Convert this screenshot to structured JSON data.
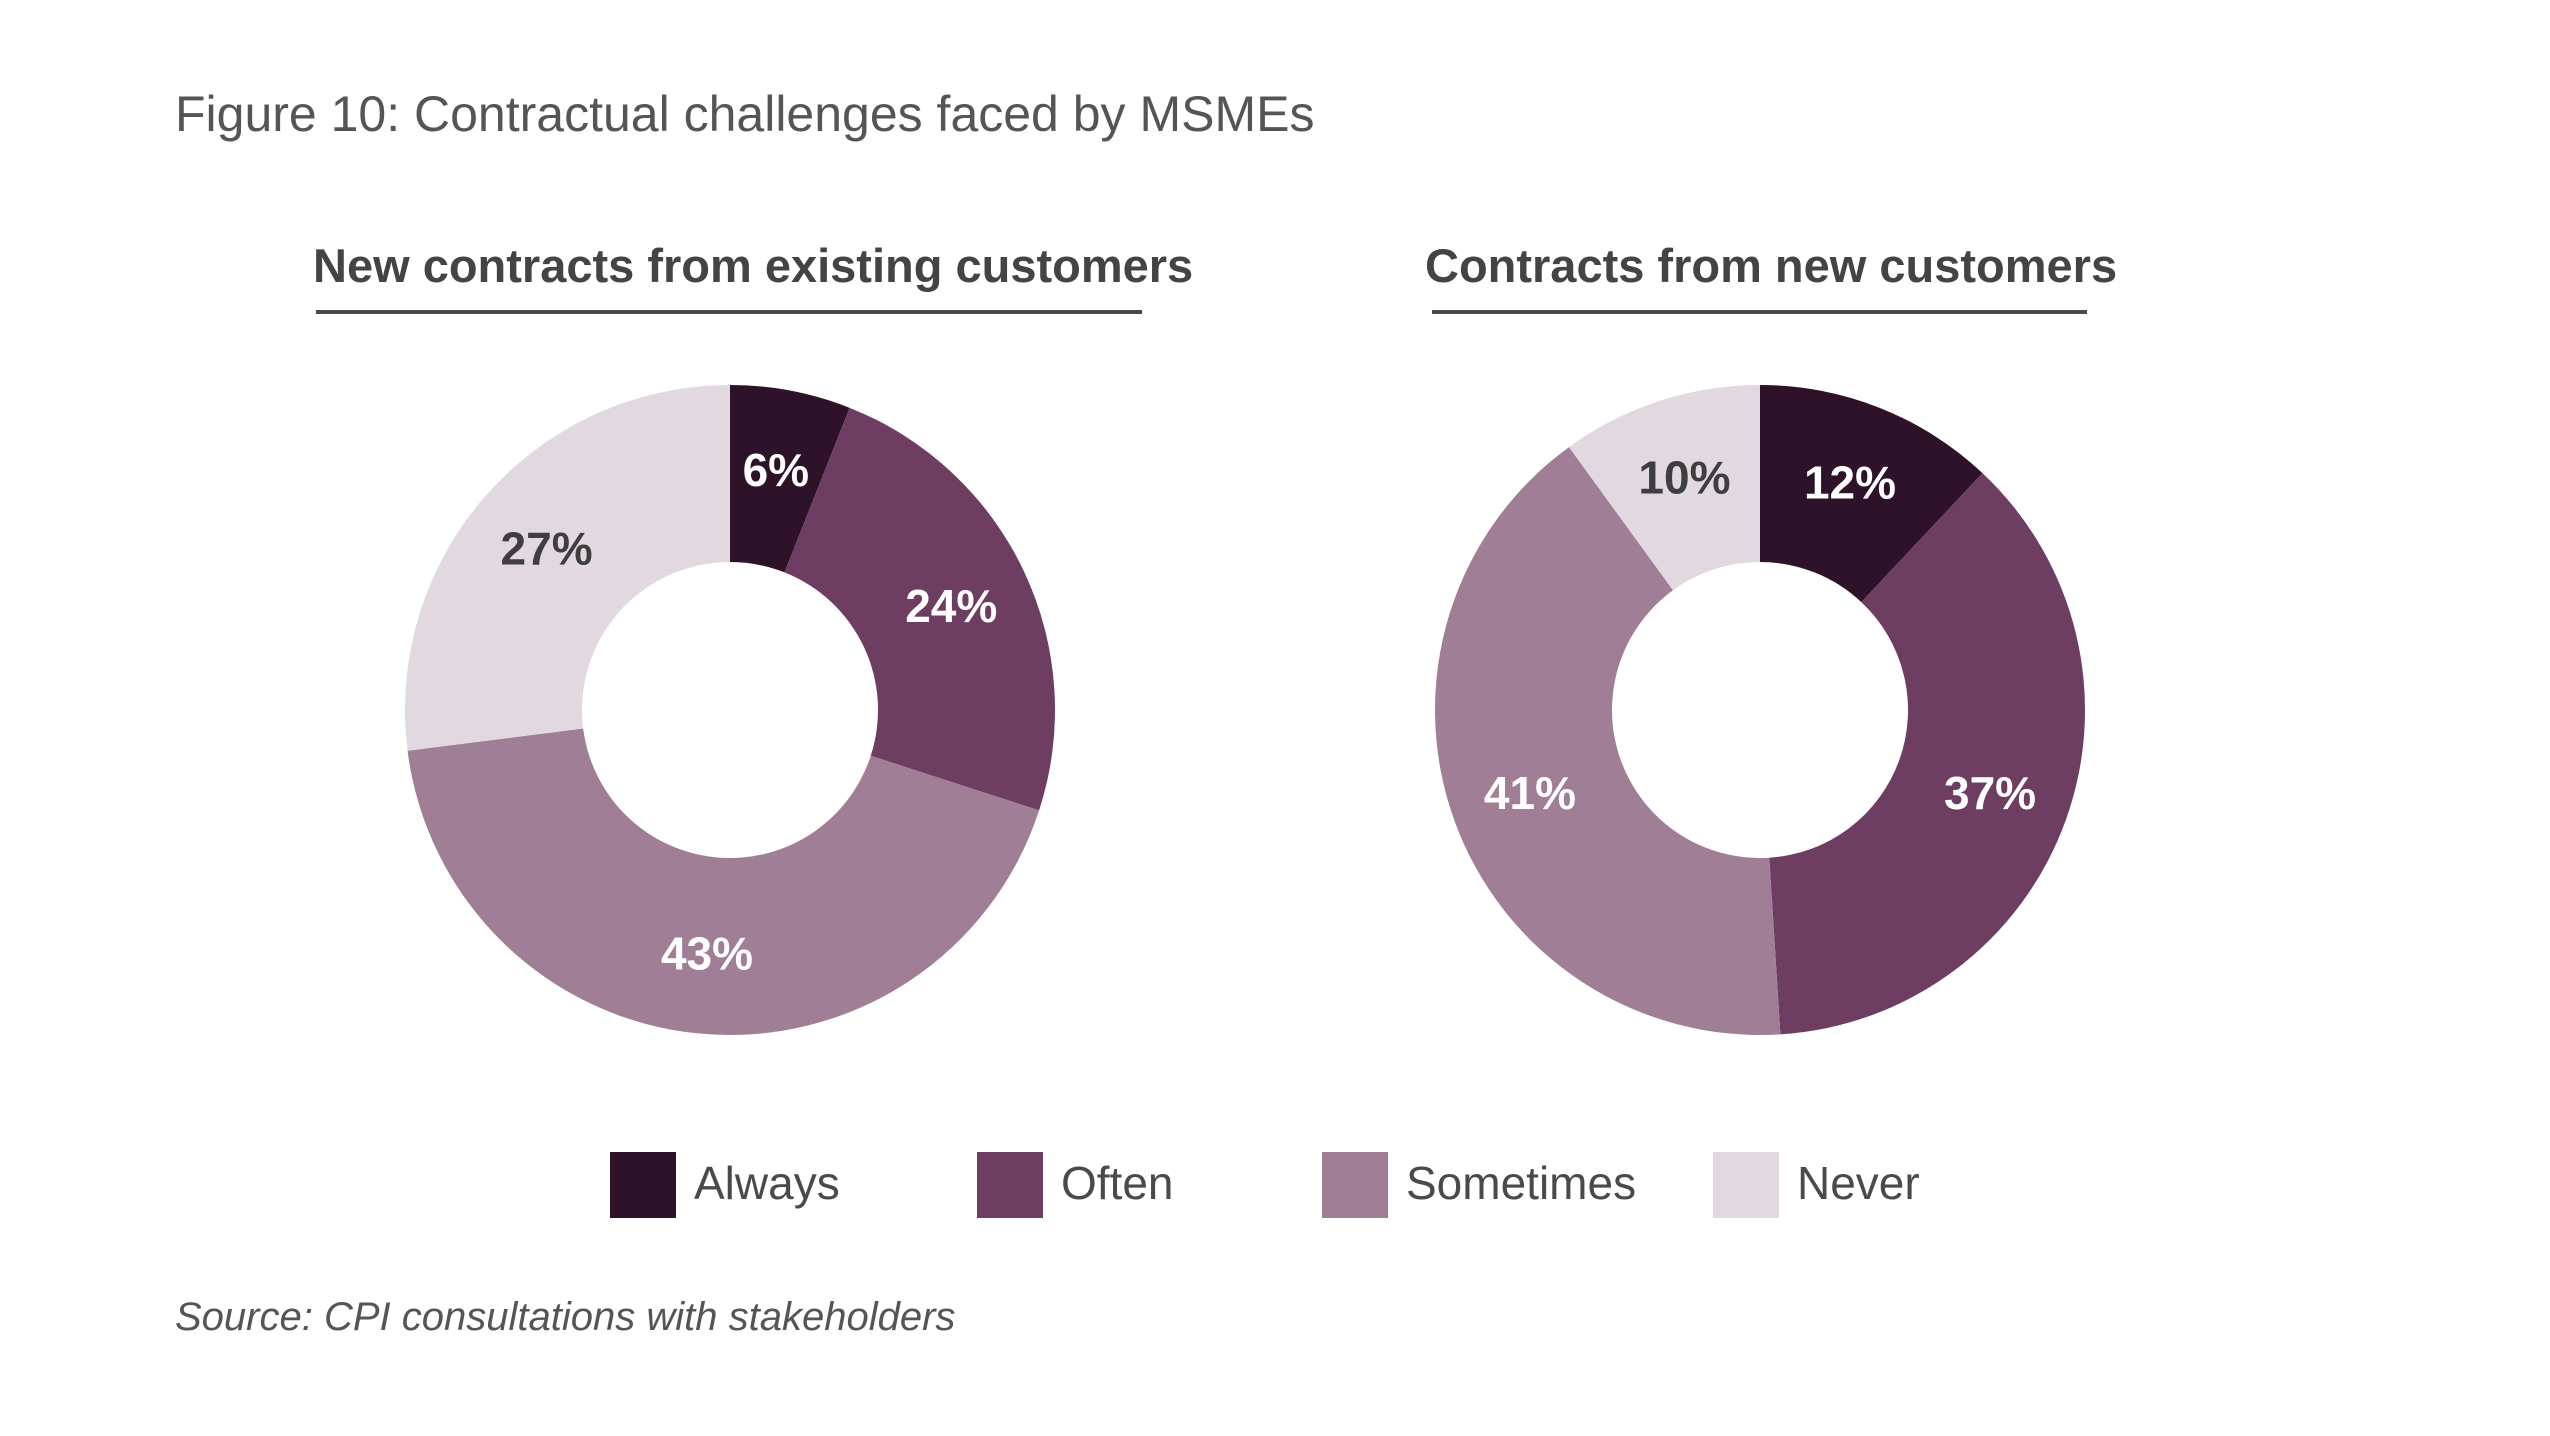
{
  "figure_title": "Figure 10: Contractual challenges faced by MSMEs",
  "source": "Source: CPI consultations with stakeholders",
  "legend": [
    {
      "label": "Always",
      "color": "#2e1229"
    },
    {
      "label": "Often",
      "color": "#6e3e62"
    },
    {
      "label": "Sometimes",
      "color": "#a07f96"
    },
    {
      "label": "Never",
      "color": "#e2d9e0"
    }
  ],
  "chart_data": [
    {
      "type": "pie",
      "subtype": "donut",
      "title": "New contracts from existing customers",
      "categories": [
        "Always",
        "Often",
        "Sometimes",
        "Never"
      ],
      "values": [
        6,
        24,
        43,
        27
      ],
      "labels": [
        "6%",
        "24%",
        "43%",
        "27%"
      ],
      "colors": [
        "#2e1229",
        "#6e3e62",
        "#a07f96",
        "#e2d9e0"
      ],
      "label_colors": [
        "#ffffff",
        "#ffffff",
        "#ffffff",
        "#3e3e3e"
      ],
      "start": "top, clockwise"
    },
    {
      "type": "pie",
      "subtype": "donut",
      "title": "Contracts from new customers",
      "categories": [
        "Always",
        "Often",
        "Sometimes",
        "Never"
      ],
      "values": [
        12,
        37,
        41,
        10
      ],
      "labels": [
        "12%",
        "37%",
        "41%",
        "10%"
      ],
      "colors": [
        "#2e1229",
        "#6e3e62",
        "#a07f96",
        "#e2d9e0"
      ],
      "label_colors": [
        "#ffffff",
        "#ffffff",
        "#ffffff",
        "#3e3e3e"
      ],
      "start": "top, clockwise"
    }
  ]
}
